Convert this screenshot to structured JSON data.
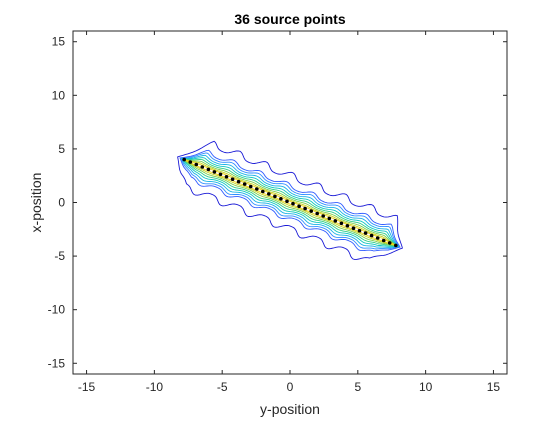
{
  "chart_data": {
    "type": "contour",
    "title": "36 source points",
    "xlabel": "y-position",
    "ylabel": "x-position",
    "xlim": [
      -16,
      16
    ],
    "ylim": [
      -16,
      16
    ],
    "xticks": [
      -15,
      -10,
      -5,
      0,
      5,
      10,
      15
    ],
    "yticks": [
      -15,
      -10,
      -5,
      0,
      5,
      10,
      15
    ],
    "grid": false,
    "source_points": {
      "count": 36,
      "x_start": -7.8,
      "y_start": 4.0,
      "x_end": 7.8,
      "y_end": -4.0,
      "marker": "black dots"
    },
    "contour_colors": [
      "#1a1ad6",
      "#2f5bff",
      "#2f8fff",
      "#19b3e6",
      "#12c9c0",
      "#33cf8a",
      "#7fd04d",
      "#c8d21f",
      "#f0d21a"
    ],
    "contour_half_widths": [
      1.95,
      1.2,
      1.0,
      0.8,
      0.62,
      0.46,
      0.32,
      0.2,
      0.1
    ],
    "contour_extensions": [
      0.55,
      0.35,
      0.28,
      0.22,
      0.16,
      0.1,
      0.06,
      0.03,
      0.01
    ]
  }
}
